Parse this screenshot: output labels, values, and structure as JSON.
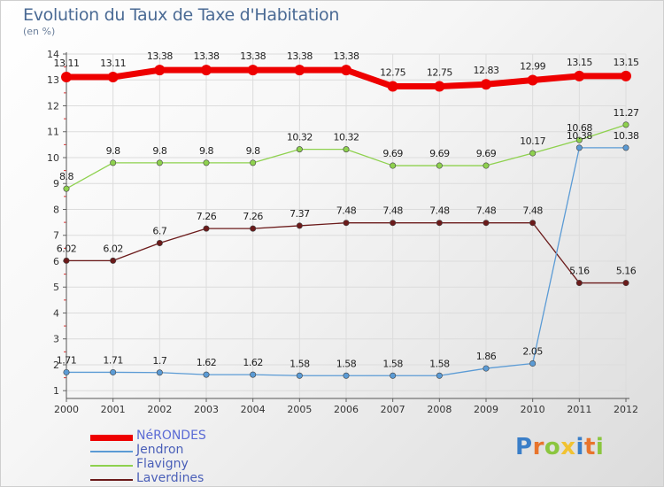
{
  "title": "Evolution du Taux de Taxe d'Habitation",
  "subtitle": "(en %)",
  "logo": {
    "text": "Proxiti",
    "letter_colors": [
      "#3a7ec8",
      "#e8742c",
      "#8bc63f",
      "#f1c232",
      "#3a7ec8",
      "#e8742c",
      "#8bc63f"
    ]
  },
  "chart_data": {
    "type": "line",
    "title": "Evolution du Taux de Taxe d'Habitation",
    "ylabel": "(en %)",
    "xlabel": "",
    "x": [
      "2000",
      "2001",
      "2002",
      "2003",
      "2004",
      "2005",
      "2006",
      "2007",
      "2008",
      "2009",
      "2010",
      "2011",
      "2012"
    ],
    "y_ticks": [
      "1",
      "2",
      "3",
      "4",
      "5",
      "6",
      "7",
      "8",
      "9",
      "10",
      "11",
      "12",
      "13",
      "14"
    ],
    "ylim": [
      0.7,
      14
    ],
    "grid": true,
    "legend_position": "bottom-left",
    "series": [
      {
        "name": "NéRONDES",
        "color": "#ee0000",
        "values": [
          13.11,
          13.11,
          13.38,
          13.38,
          13.38,
          13.38,
          13.38,
          12.75,
          12.75,
          12.83,
          12.99,
          13.15,
          13.15
        ],
        "labels": [
          "13.11",
          "13.11",
          "13.38",
          "13.38",
          "13.38",
          "13.38",
          "13.38",
          "12.75",
          "12.75",
          "12.83",
          "12.99",
          "13.15",
          "13.15"
        ]
      },
      {
        "name": "Flavigny",
        "color": "#8ed14e",
        "values": [
          8.8,
          9.8,
          9.8,
          9.8,
          9.8,
          10.32,
          10.32,
          9.69,
          9.69,
          9.69,
          10.17,
          10.68,
          11.27
        ],
        "labels": [
          "8.8",
          "9.8",
          "9.8",
          "9.8",
          "9.8",
          "10.32",
          "10.32",
          "9.69",
          "9.69",
          "9.69",
          "10.17",
          "10.68",
          "11.27"
        ]
      },
      {
        "name": "Laverdines",
        "color": "#6b1a1a",
        "values": [
          6.02,
          6.02,
          6.7,
          7.26,
          7.26,
          7.37,
          7.48,
          7.48,
          7.48,
          7.48,
          7.48,
          5.16,
          5.16
        ],
        "labels": [
          "6.02",
          "6.02",
          "6.7",
          "7.26",
          "7.26",
          "7.37",
          "7.48",
          "7.48",
          "7.48",
          "7.48",
          "7.48",
          "5.16",
          "5.16"
        ]
      },
      {
        "name": "Jendron",
        "color": "#5b9bd5",
        "values": [
          1.71,
          1.71,
          1.7,
          1.62,
          1.62,
          1.58,
          1.58,
          1.58,
          1.58,
          1.86,
          2.05,
          10.38,
          10.38
        ],
        "labels": [
          "1.71",
          "1.71",
          "1.7",
          "1.62",
          "1.62",
          "1.58",
          "1.58",
          "1.58",
          "1.58",
          "1.86",
          "2.05",
          "10.38",
          "10.38"
        ]
      }
    ],
    "legend_order": [
      "NéRONDES",
      "Jendron",
      "Flavigny",
      "Laverdines"
    ]
  }
}
